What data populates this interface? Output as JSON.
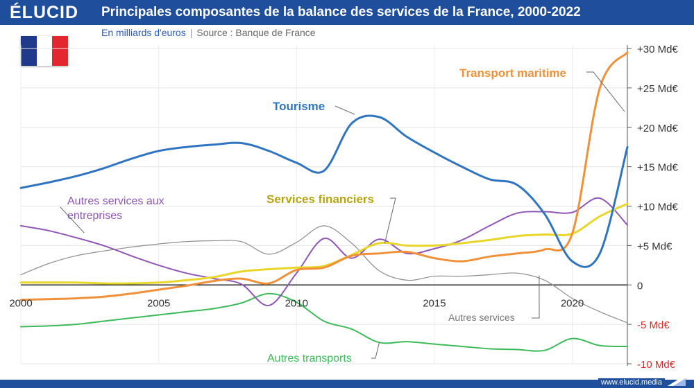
{
  "brand": {
    "logo": "ÉLUCID",
    "url": "www.elucid.media"
  },
  "header": {
    "title": "Principales composantes de la balance des services de la France, 2000-2022",
    "unit": "En milliards d'euros",
    "separator": "|",
    "source": "Source : Banque de France"
  },
  "flag": {
    "country": "France",
    "colors": [
      "#1f3a8a",
      "#ffffff",
      "#e3262f"
    ]
  },
  "chart_data": {
    "type": "line",
    "xlim": [
      2000,
      2022
    ],
    "ylim": [
      -10,
      30
    ],
    "x_ticks": [
      2000,
      2005,
      2010,
      2015,
      2020
    ],
    "y_ticks": [
      {
        "value": 30,
        "label": "+30 Md€"
      },
      {
        "value": 25,
        "label": "+25 Md€"
      },
      {
        "value": 20,
        "label": "+20 Md€"
      },
      {
        "value": 15,
        "label": "+15 Md€"
      },
      {
        "value": 10,
        "label": "+10 Md€"
      },
      {
        "value": 5,
        "label": "+5 Md€"
      },
      {
        "value": 0,
        "label": "0"
      },
      {
        "value": -5,
        "label": "-5 Md€"
      },
      {
        "value": -10,
        "label": "-10 Md€"
      }
    ],
    "grid": true,
    "legend": "inline labels",
    "x": [
      2000,
      2001,
      2002,
      2003,
      2004,
      2005,
      2006,
      2007,
      2008,
      2009,
      2010,
      2011,
      2012,
      2013,
      2014,
      2015,
      2016,
      2017,
      2018,
      2019,
      2020,
      2021,
      2022
    ],
    "series": [
      {
        "name": "Tourisme",
        "color": "#2f74c0",
        "width": 3,
        "values": [
          12.3,
          13.0,
          13.8,
          14.8,
          16.0,
          17.0,
          17.5,
          17.8,
          18.0,
          17.0,
          15.5,
          14.5,
          20.5,
          21.3,
          18.8,
          16.8,
          15.0,
          13.4,
          12.7,
          9.0,
          3.0,
          4.0,
          17.5
        ]
      },
      {
        "name": "Transport maritime",
        "color": "#f0913a",
        "width": 3,
        "values": [
          -1.9,
          -1.8,
          -1.7,
          -1.5,
          -1.1,
          -0.6,
          -0.1,
          0.5,
          0.8,
          0.2,
          1.9,
          2.2,
          3.7,
          4.0,
          4.2,
          3.4,
          3.0,
          3.6,
          4.0,
          4.5,
          6.5,
          25.0,
          29.5
        ]
      },
      {
        "name": "Services financiers",
        "color": "#e8d72a",
        "width": 3,
        "values": [
          0.3,
          0.3,
          0.3,
          0.2,
          0.2,
          0.3,
          0.6,
          1.0,
          1.7,
          2.0,
          2.2,
          2.4,
          3.8,
          5.3,
          5.0,
          5.0,
          5.3,
          5.7,
          6.2,
          6.4,
          6.5,
          8.7,
          10.3
        ]
      },
      {
        "name": "Autres services aux entreprises",
        "color": "#8e57b5",
        "width": 2,
        "values": [
          7.5,
          6.9,
          6.0,
          5.0,
          3.7,
          2.5,
          1.5,
          0.8,
          0.1,
          -2.6,
          1.5,
          5.9,
          3.4,
          5.8,
          4.0,
          4.6,
          5.7,
          7.5,
          9.1,
          9.3,
          9.2,
          11.0,
          7.6
        ]
      },
      {
        "name": "Autres services",
        "color": "#8c8c8c",
        "width": 1.2,
        "values": [
          1.3,
          2.7,
          3.7,
          4.3,
          4.8,
          5.2,
          5.5,
          5.6,
          5.5,
          3.9,
          5.4,
          7.5,
          5.3,
          1.8,
          0.6,
          1.1,
          1.1,
          1.3,
          1.5,
          0.6,
          -1.7,
          -3.4,
          -4.8
        ]
      },
      {
        "name": "Autres transports",
        "color": "#3cba5a",
        "width": 2,
        "values": [
          -5.3,
          -5.2,
          -5.0,
          -4.6,
          -4.2,
          -3.8,
          -3.4,
          -3.0,
          -2.3,
          -1.1,
          -2.2,
          -4.6,
          -5.6,
          -7.3,
          -7.2,
          -7.5,
          -7.8,
          -8.1,
          -8.2,
          -8.3,
          -6.8,
          -7.7,
          -7.8
        ]
      }
    ],
    "annotations": [
      {
        "series": "Tourisme",
        "text": "Tourisme"
      },
      {
        "series": "Transport maritime",
        "text": "Transport maritime"
      },
      {
        "series": "Services financiers",
        "text": "Services financiers"
      },
      {
        "series": "Autres services aux entreprises",
        "lines": [
          "Autres services aux",
          "entreprises"
        ]
      },
      {
        "series": "Autres services",
        "text": "Autres services"
      },
      {
        "series": "Autres transports",
        "text": "Autres transports"
      }
    ]
  }
}
